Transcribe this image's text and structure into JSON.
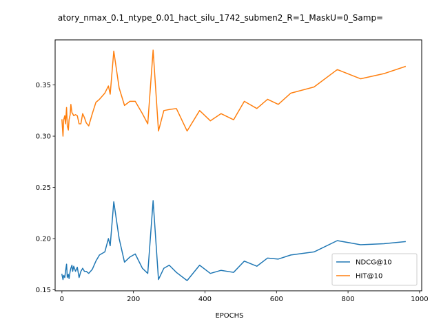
{
  "chart_data": {
    "type": "line",
    "title": "atory_nmax_0.1_ntype_0.01_hact_silu_1742_submen2_R=1_MaskU=0_Samp=",
    "xlabel": "EPOCHS",
    "ylabel": "",
    "xlim": [
      -19,
      1006
    ],
    "ylim": [
      0.149,
      0.394
    ],
    "xticks": [
      0,
      200,
      400,
      600,
      800,
      1000
    ],
    "xtick_labels": [
      "0",
      "200",
      "400",
      "600",
      "800",
      "1000"
    ],
    "yticks": [
      0.15,
      0.2,
      0.25,
      0.3,
      0.35
    ],
    "ytick_labels": [
      "0.15",
      "0.20",
      "0.25",
      "0.30",
      "0.35"
    ],
    "grid": false,
    "legend_position": "lower-right",
    "series": [
      {
        "name": "NDCG@10",
        "color": "#1f77b4",
        "x": [
          0,
          3,
          5,
          8,
          10,
          13,
          15,
          18,
          20,
          23,
          25,
          28,
          30,
          33,
          38,
          43,
          48,
          53,
          58,
          63,
          68,
          75,
          85,
          95,
          105,
          120,
          130,
          135,
          145,
          160,
          175,
          190,
          205,
          225,
          240,
          255,
          270,
          285,
          300,
          320,
          350,
          385,
          415,
          445,
          480,
          510,
          545,
          575,
          605,
          640,
          705,
          770,
          835,
          900,
          960
        ],
        "y": [
          0.165,
          0.16,
          0.164,
          0.162,
          0.168,
          0.175,
          0.162,
          0.165,
          0.161,
          0.168,
          0.171,
          0.174,
          0.168,
          0.173,
          0.168,
          0.172,
          0.162,
          0.168,
          0.171,
          0.168,
          0.168,
          0.166,
          0.17,
          0.178,
          0.184,
          0.187,
          0.2,
          0.193,
          0.236,
          0.2,
          0.177,
          0.182,
          0.185,
          0.171,
          0.166,
          0.237,
          0.16,
          0.171,
          0.174,
          0.167,
          0.159,
          0.174,
          0.166,
          0.169,
          0.167,
          0.178,
          0.173,
          0.181,
          0.18,
          0.184,
          0.187,
          0.198,
          0.194,
          0.195,
          0.197
        ]
      },
      {
        "name": "HIT@10",
        "color": "#ff7f0e",
        "x": [
          0,
          3,
          5,
          8,
          10,
          13,
          15,
          18,
          20,
          23,
          25,
          28,
          30,
          33,
          38,
          43,
          48,
          53,
          58,
          63,
          68,
          75,
          85,
          95,
          105,
          120,
          130,
          135,
          145,
          160,
          175,
          190,
          205,
          225,
          240,
          255,
          270,
          285,
          300,
          320,
          350,
          385,
          415,
          445,
          480,
          510,
          545,
          575,
          605,
          640,
          705,
          770,
          835,
          900,
          960
        ],
        "y": [
          0.316,
          0.3,
          0.316,
          0.32,
          0.312,
          0.328,
          0.31,
          0.306,
          0.316,
          0.321,
          0.331,
          0.323,
          0.322,
          0.32,
          0.321,
          0.32,
          0.312,
          0.312,
          0.322,
          0.318,
          0.313,
          0.31,
          0.322,
          0.333,
          0.336,
          0.342,
          0.349,
          0.341,
          0.383,
          0.347,
          0.33,
          0.334,
          0.334,
          0.322,
          0.312,
          0.384,
          0.305,
          0.325,
          0.326,
          0.327,
          0.305,
          0.325,
          0.315,
          0.322,
          0.316,
          0.334,
          0.327,
          0.336,
          0.331,
          0.342,
          0.348,
          0.365,
          0.356,
          0.361,
          0.368
        ]
      }
    ]
  }
}
